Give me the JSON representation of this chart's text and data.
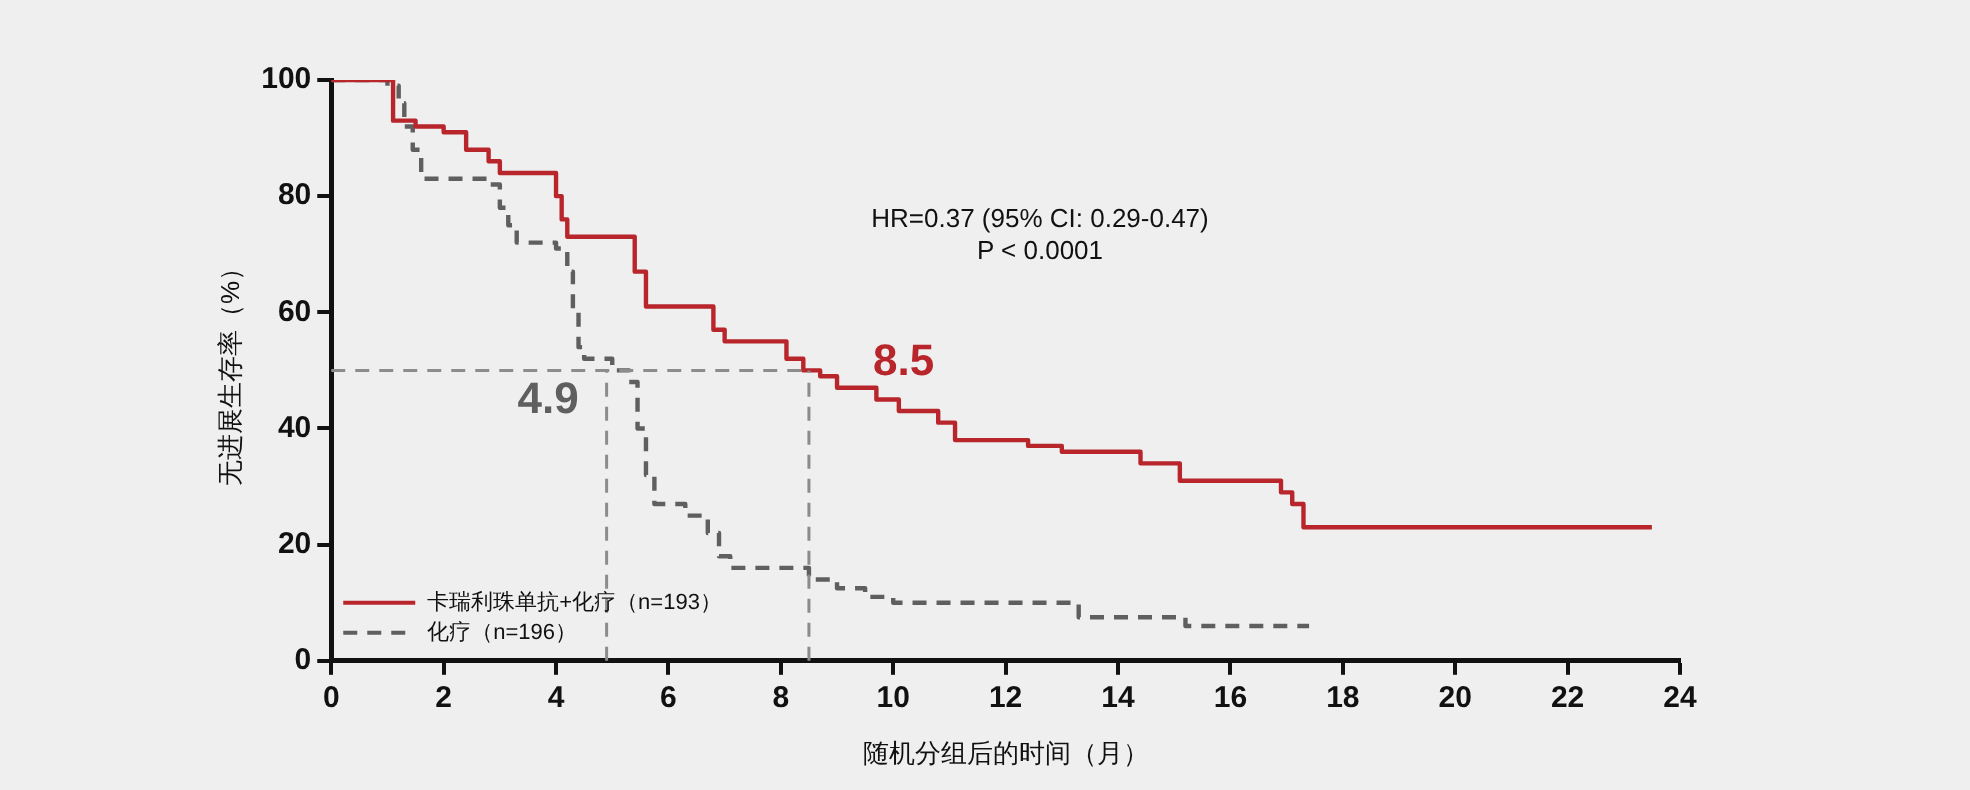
{
  "chart_data": {
    "type": "step",
    "xlabel": "随机分组后的时间（月）",
    "ylabel": "无进展生存率（%）",
    "xlim": [
      0,
      24
    ],
    "xticks": [
      0,
      2,
      4,
      6,
      8,
      10,
      12,
      14,
      16,
      18,
      20,
      22,
      24
    ],
    "ylim": [
      0,
      100
    ],
    "yticks": [
      0,
      20,
      40,
      60,
      80,
      100
    ],
    "grid": false,
    "legend": "bottom left",
    "marker": "none",
    "series": [
      {
        "name": "卡瑞利珠单抗+化疗（n=193）",
        "color": "#b8262c",
        "line_style": "solid",
        "x": [
          0,
          1.1,
          1.5,
          2.0,
          2.4,
          2.8,
          3.0,
          4.0,
          4.1,
          4.2,
          5.4,
          5.6,
          6.8,
          7.0,
          8.1,
          8.4,
          8.7,
          9.0,
          9.7,
          10.1,
          10.8,
          11.1,
          12.4,
          13.0,
          14.4,
          15.1,
          16.9,
          17.1,
          17.3,
          23.5
        ],
        "values": [
          100,
          93,
          92,
          91,
          88,
          86,
          84,
          80,
          76,
          73,
          67,
          61,
          57,
          55,
          52,
          50,
          49,
          47,
          45,
          43,
          41,
          38,
          37,
          36,
          34,
          31,
          29,
          27,
          23,
          23
        ]
      },
      {
        "name": "化疗（n=196）",
        "color": "#5f5f5f",
        "line_style": "dashed",
        "x": [
          0,
          1.0,
          1.2,
          1.3,
          1.45,
          1.6,
          2.8,
          3.0,
          3.15,
          3.3,
          4.0,
          4.2,
          4.3,
          4.4,
          4.5,
          5.0,
          5.3,
          5.45,
          5.6,
          5.75,
          6.3,
          6.7,
          6.9,
          7.1,
          8.5,
          9.0,
          9.5,
          10.0,
          13.3,
          15.2,
          17.4
        ],
        "values": [
          100,
          99,
          96,
          92,
          88,
          83,
          82,
          78,
          75,
          72,
          71,
          67,
          60,
          54,
          52,
          50,
          48,
          40,
          32,
          27,
          25,
          22,
          18,
          16,
          14,
          12.5,
          11,
          10,
          7.5,
          6,
          6
        ]
      }
    ],
    "ref_lines": [
      {
        "axis": "x",
        "value": 4.9,
        "color": "#8c8c8c",
        "line_style": "dashed"
      },
      {
        "axis": "x",
        "value": 8.5,
        "color": "#8c8c8c",
        "line_style": "dashed"
      },
      {
        "axis": "y",
        "value": 50,
        "color": "#8c8c8c",
        "line_style": "dashed"
      }
    ],
    "annotations": [
      {
        "text": "8.5",
        "x": 8.5,
        "y": 50
      },
      {
        "text": "4.9",
        "x": 4.9,
        "y": 50
      },
      "HR=0.37 (95% CI: 0.29-0.47)",
      "P < 0.0001"
    ]
  }
}
